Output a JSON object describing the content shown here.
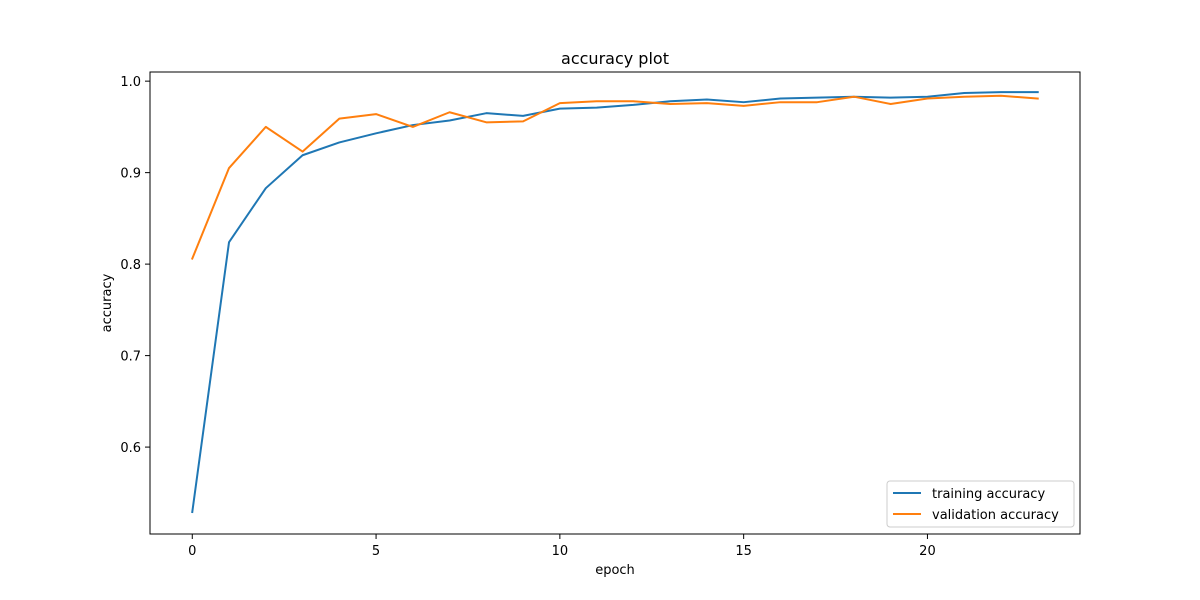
{
  "chart_data": {
    "type": "line",
    "title": "accuracy plot",
    "xlabel": "epoch",
    "ylabel": "accuracy",
    "xlim": [
      -1.15,
      24.15
    ],
    "ylim": [
      0.505,
      1.01
    ],
    "xticks": [
      0,
      5,
      10,
      15,
      20
    ],
    "yticks": [
      0.6,
      0.7,
      0.8,
      0.9,
      1.0
    ],
    "ytick_labels": [
      "0.6",
      "0.7",
      "0.8",
      "0.9",
      "1.0"
    ],
    "grid": false,
    "legend_position": "lower-right",
    "x": [
      0,
      1,
      2,
      3,
      4,
      5,
      6,
      7,
      8,
      9,
      10,
      11,
      12,
      13,
      14,
      15,
      16,
      17,
      18,
      19,
      20,
      21,
      22,
      23
    ],
    "series": [
      {
        "name": "training accuracy",
        "color": "#1f77b4",
        "values": [
          0.529,
          0.824,
          0.883,
          0.919,
          0.933,
          0.943,
          0.952,
          0.957,
          0.965,
          0.962,
          0.97,
          0.971,
          0.974,
          0.978,
          0.98,
          0.977,
          0.981,
          0.982,
          0.983,
          0.982,
          0.983,
          0.987,
          0.988,
          0.988
        ]
      },
      {
        "name": "validation accuracy",
        "color": "#ff7f0e",
        "values": [
          0.806,
          0.905,
          0.95,
          0.923,
          0.959,
          0.964,
          0.95,
          0.966,
          0.955,
          0.956,
          0.976,
          0.978,
          0.978,
          0.975,
          0.976,
          0.973,
          0.977,
          0.977,
          0.983,
          0.975,
          0.981,
          0.983,
          0.984,
          0.981
        ]
      }
    ]
  }
}
